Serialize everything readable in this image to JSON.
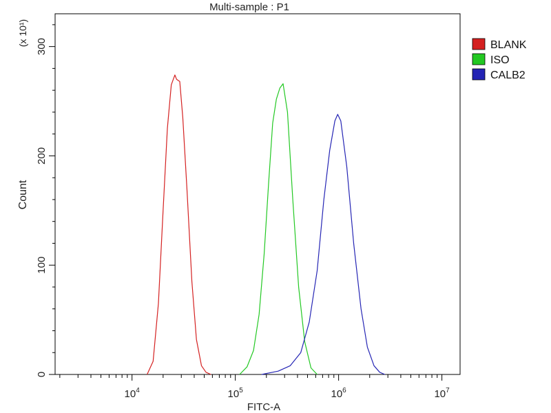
{
  "chart_data": {
    "type": "line",
    "title": "Multi-sample : P1",
    "xlabel": "FITC-A",
    "ylabel": "Count",
    "y_multiplier": "(x 10¹)",
    "x_scale": "log",
    "xlim": [
      1800,
      15000000
    ],
    "ylim": [
      0,
      330
    ],
    "grid": false,
    "legend_position": "top-right",
    "y_ticks": [
      {
        "value": 0,
        "label": "0"
      },
      {
        "value": 100,
        "label": "100"
      },
      {
        "value": 200,
        "label": "200"
      },
      {
        "value": 300,
        "label": "300"
      }
    ],
    "x_ticks": [
      {
        "value": 10000,
        "base": "10",
        "exp": "4"
      },
      {
        "value": 100000,
        "base": "10",
        "exp": "5"
      },
      {
        "value": 1000000,
        "base": "10",
        "exp": "6"
      },
      {
        "value": 10000000,
        "base": "10",
        "exp": "7"
      }
    ],
    "series": [
      {
        "name": "BLANK",
        "color": "#d42020",
        "x": [
          14000,
          16000,
          18000,
          20000,
          22000,
          24000,
          26000,
          27000,
          29000,
          31000,
          34000,
          38000,
          42000,
          47000,
          52000,
          58000
        ],
        "y": [
          0,
          12,
          65,
          150,
          225,
          265,
          274,
          270,
          268,
          235,
          170,
          85,
          32,
          8,
          2,
          0
        ]
      },
      {
        "name": "ISO",
        "color": "#22c822",
        "x": [
          110000,
          130000,
          150000,
          170000,
          190000,
          210000,
          230000,
          250000,
          270000,
          290000,
          320000,
          360000,
          410000,
          470000,
          540000,
          620000
        ],
        "y": [
          0,
          7,
          22,
          55,
          110,
          175,
          230,
          252,
          262,
          266,
          240,
          160,
          80,
          30,
          6,
          0
        ]
      },
      {
        "name": "CALB2",
        "color": "#2424b4",
        "x": [
          180000,
          260000,
          340000,
          430000,
          520000,
          620000,
          720000,
          820000,
          920000,
          980000,
          1050000,
          1200000,
          1400000,
          1650000,
          1900000,
          2200000,
          2500000,
          2800000
        ],
        "y": [
          0,
          3,
          8,
          20,
          48,
          95,
          160,
          205,
          232,
          238,
          232,
          190,
          120,
          60,
          25,
          8,
          2,
          0
        ]
      }
    ]
  }
}
